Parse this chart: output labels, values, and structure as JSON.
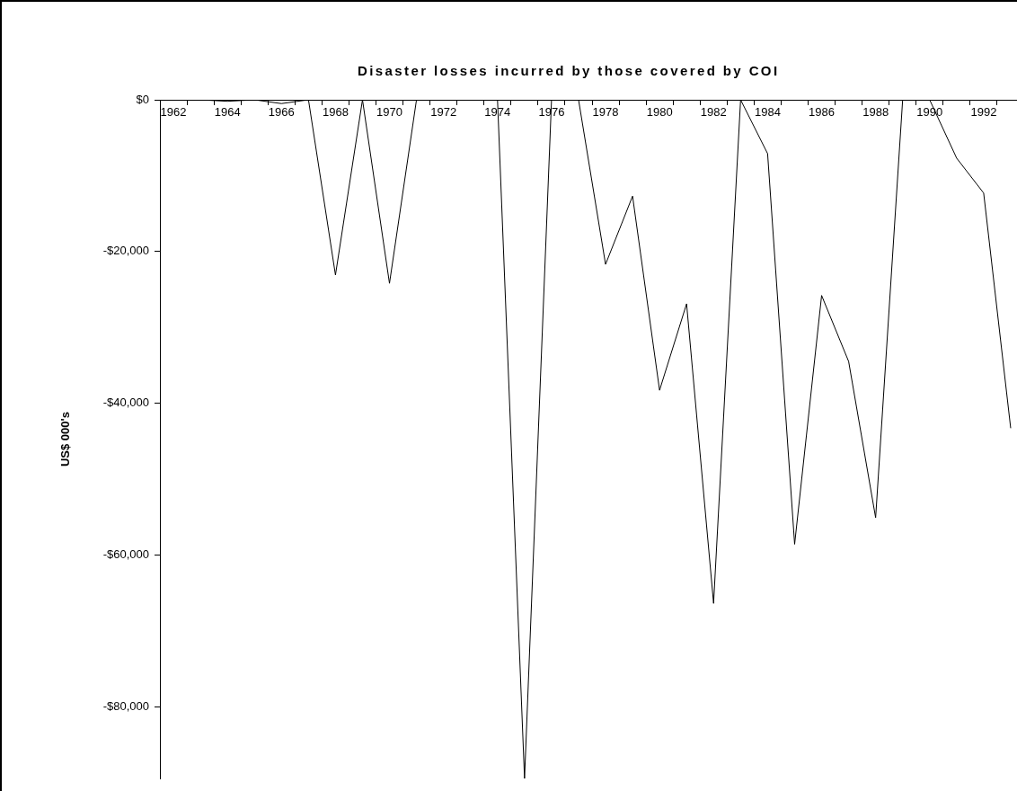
{
  "chart_data": {
    "type": "line",
    "title": "Disaster losses incurred by those covered by COI",
    "ylabel": "US$ 000's",
    "categories": [
      "1962",
      null,
      "1964",
      null,
      "1966",
      null,
      "1968",
      null,
      "1970",
      null,
      "1972",
      null,
      "1974",
      null,
      "1976",
      null,
      "1978",
      null,
      "1980",
      null,
      "1982",
      null,
      "1984",
      null,
      "1986",
      null,
      "1988",
      null,
      "1990",
      null,
      "1992",
      null
    ],
    "series": [
      {
        "color": "#000000",
        "values": [
          0,
          0,
          -200,
          0,
          -500,
          0,
          -23100,
          0,
          -24200,
          0,
          0,
          0,
          0,
          -89500,
          0,
          0,
          -21700,
          -12700,
          -38300,
          -26900,
          -66400,
          0,
          -7100,
          -58600,
          -25800,
          -34500,
          -55100,
          0,
          0,
          -7700,
          -12300,
          -43300
        ]
      }
    ],
    "ylim": [
      -89500,
      0
    ],
    "yticks": [
      {
        "value": 0,
        "label": "$0"
      },
      {
        "value": -20000,
        "label": "-$20,000"
      },
      {
        "value": -40000,
        "label": "-$40,000"
      },
      {
        "value": -60000,
        "label": "-$60,000"
      },
      {
        "value": -80000,
        "label": "-$80,000"
      }
    ],
    "grid": false,
    "legend": false
  }
}
